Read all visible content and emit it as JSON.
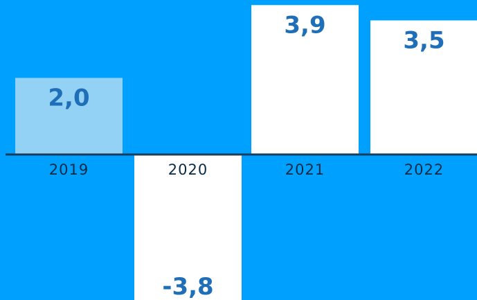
{
  "chart_data": {
    "type": "bar",
    "categories": [
      "2019",
      "2020",
      "2021",
      "2022"
    ],
    "values": [
      2.0,
      -3.8,
      3.9,
      3.5
    ],
    "value_labels": [
      "2,0",
      "-3,8",
      "3,9",
      "3,5"
    ],
    "title": "",
    "xlabel": "",
    "ylabel": "",
    "ylim": [
      -3.8,
      3.9
    ],
    "grid": false,
    "colors": {
      "background": "#00a0ff",
      "bar_first": "#93d2f5",
      "bar_default": "#ffffff",
      "baseline": "#1b3d5c",
      "value_text": "#1f6fb8",
      "category_text": "#0b2b45"
    }
  }
}
